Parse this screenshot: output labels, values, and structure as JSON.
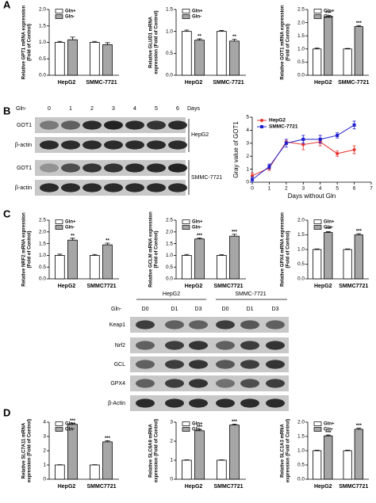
{
  "panel_labels": [
    "A",
    "B",
    "C",
    "D"
  ],
  "blot_b": {
    "treatment": "Gln-",
    "lanes": [
      "0",
      "1",
      "2",
      "3",
      "4",
      "5",
      "6"
    ],
    "unit": "Days",
    "rows": [
      "GOT1",
      "β-actin",
      "GOT1",
      "β-actin"
    ],
    "groups": [
      "HepG2",
      "SMMC-7721"
    ]
  },
  "blot_c": {
    "treatment": "Gln-",
    "groups": [
      "HepG2",
      "SMMC-7721"
    ],
    "lanes": [
      "D0",
      "D1",
      "D3",
      "D0",
      "D1",
      "D3"
    ],
    "rows": [
      "Keap1",
      "Nrf2",
      "GCL",
      "GPX4",
      "β-Actin"
    ]
  },
  "chart_data": [
    {
      "type": "bar",
      "ylabel": [
        "Relative GPT1 mRNA expression",
        "(Fold of Control)"
      ],
      "categories": [
        "HepG2",
        "SMMC-7721"
      ],
      "series": [
        {
          "name": "Gln+",
          "color": "#ffffff",
          "values": [
            1.0,
            1.0
          ],
          "errors": [
            0.03,
            0.03
          ]
        },
        {
          "name": "Gln-",
          "color": "#a6a6a6",
          "values": [
            1.08,
            0.93
          ],
          "errors": [
            0.08,
            0.06
          ]
        }
      ],
      "ylim": [
        0,
        2
      ],
      "yticks": [
        {
          "value": 0,
          "label": "0.0"
        },
        {
          "value": 0.5,
          "label": "0.5"
        },
        {
          "value": 1,
          "label": "1.0"
        },
        {
          "value": 1.5,
          "label": "1.5"
        },
        {
          "value": 2,
          "label": "2.0"
        }
      ]
    },
    {
      "type": "bar",
      "ylabel": [
        "Relative GLUD1 mRNA",
        "expression (Fold of Control)"
      ],
      "categories": [
        "HepG2",
        "SMMC-7721"
      ],
      "series": [
        {
          "name": "Gln+",
          "color": "#ffffff",
          "values": [
            1.0,
            1.0
          ],
          "errors": [
            0.03,
            0.02
          ]
        },
        {
          "name": "Gln-",
          "color": "#a6a6a6",
          "values": [
            0.8,
            0.78
          ],
          "errors": [
            0.03,
            0.04
          ],
          "significance": [
            "**",
            "**"
          ]
        }
      ],
      "ylim": [
        0,
        1.5
      ],
      "yticks": [
        {
          "value": 0,
          "label": "0.0"
        },
        {
          "value": 0.5,
          "label": "0.5"
        },
        {
          "value": 1,
          "label": "1.0"
        },
        {
          "value": 1.5,
          "label": "1.5"
        }
      ]
    },
    {
      "type": "bar",
      "ylabel": [
        "Relative GOT1 mRNA expression",
        "(Fold of Control)"
      ],
      "categories": [
        "HepG2",
        "SMMC-7721"
      ],
      "series": [
        {
          "name": "Gln+",
          "color": "#ffffff",
          "values": [
            1.0,
            1.0
          ],
          "errors": [
            0.03,
            0.02
          ]
        },
        {
          "name": "Gln-",
          "color": "#a6a6a6",
          "values": [
            2.22,
            1.85
          ],
          "errors": [
            0.04,
            0.04
          ],
          "significance": [
            "***",
            "***"
          ]
        }
      ],
      "ylim": [
        0,
        2.5
      ],
      "yticks": [
        {
          "value": 0,
          "label": "0.0"
        },
        {
          "value": 0.5,
          "label": "0.5"
        },
        {
          "value": 1,
          "label": "1.0"
        },
        {
          "value": 1.5,
          "label": "1.5"
        },
        {
          "value": 2,
          "label": "2.0"
        },
        {
          "value": 2.5,
          "label": "2.5"
        }
      ]
    },
    {
      "type": "line",
      "xlabel": "Days without Gln",
      "ylabel": "Gray value of GOT1",
      "x": [
        0,
        1,
        2,
        3,
        4,
        5,
        6
      ],
      "series": [
        {
          "name": "HepG2",
          "color": "#e8322e",
          "marker": "circle",
          "values": [
            0.5,
            1.1,
            3.1,
            2.9,
            3.1,
            2.2,
            2.5
          ],
          "errors": [
            0.2,
            0.2,
            0.2,
            0.4,
            0.3,
            0.2,
            0.3
          ]
        },
        {
          "name": "SMMC-7721",
          "color": "#1f1fcf",
          "marker": "square",
          "values": [
            0.2,
            1.2,
            3.0,
            3.3,
            3.3,
            3.6,
            4.4
          ],
          "errors": [
            0.2,
            0.2,
            0.3,
            0.3,
            0.3,
            0.2,
            0.3
          ]
        }
      ],
      "xlim": [
        0,
        7
      ],
      "xticks": [
        0,
        1,
        2,
        3,
        4,
        5,
        6,
        7
      ],
      "ylim": [
        0,
        5
      ],
      "yticks": [
        0,
        1,
        2,
        3,
        4,
        5
      ],
      "legend": "upper-left"
    },
    {
      "type": "bar",
      "ylabel": [
        "Relative NRF2 mRNA expression",
        "(Fold of Control)"
      ],
      "categories": [
        "HepG2",
        "SMMC7721"
      ],
      "series": [
        {
          "name": "Gln+",
          "color": "#ffffff",
          "values": [
            1.0,
            1.0
          ],
          "errors": [
            0.05,
            0.04
          ]
        },
        {
          "name": "Gln-",
          "color": "#a6a6a6",
          "values": [
            1.65,
            1.45
          ],
          "errors": [
            0.08,
            0.07
          ],
          "significance": [
            "**",
            "**"
          ]
        }
      ],
      "ylim": [
        0,
        2.5
      ],
      "yticks": [
        {
          "value": 0,
          "label": "0.0"
        },
        {
          "value": 0.5,
          "label": "0.5"
        },
        {
          "value": 1,
          "label": "1.0"
        },
        {
          "value": 1.5,
          "label": "1.5"
        },
        {
          "value": 2,
          "label": "2.0"
        },
        {
          "value": 2.5,
          "label": "2.5"
        }
      ]
    },
    {
      "type": "bar",
      "ylabel": [
        "Relative GCLM mRNA expression",
        "(Fold of Control)"
      ],
      "categories": [
        "HepG2",
        "SMMC7721"
      ],
      "series": [
        {
          "name": "Gln+",
          "color": "#ffffff",
          "values": [
            1.0,
            1.0
          ],
          "errors": [
            0.04,
            0.03
          ]
        },
        {
          "name": "Gln-",
          "color": "#a6a6a6",
          "values": [
            1.7,
            1.82
          ],
          "errors": [
            0.04,
            0.08
          ],
          "significance": [
            "***",
            "***"
          ]
        }
      ],
      "ylim": [
        0,
        2.5
      ],
      "yticks": [
        {
          "value": 0,
          "label": "0.0"
        },
        {
          "value": 0.5,
          "label": "0.5"
        },
        {
          "value": 1,
          "label": "1.0"
        },
        {
          "value": 1.5,
          "label": "1.5"
        },
        {
          "value": 2,
          "label": "2.0"
        },
        {
          "value": 2.5,
          "label": "2.5"
        }
      ]
    },
    {
      "type": "bar",
      "ylabel": [
        "Relative GPX4 mRNA expression",
        "(Fold of Control)"
      ],
      "categories": [
        "HepG2",
        "SMMC7721"
      ],
      "series": [
        {
          "name": "Gln+",
          "color": "#ffffff",
          "values": [
            1.0,
            1.0
          ],
          "errors": [
            0.02,
            0.02
          ]
        },
        {
          "name": "Gln-",
          "color": "#a6a6a6",
          "values": [
            1.58,
            1.5
          ],
          "errors": [
            0.03,
            0.04
          ],
          "significance": [
            "***",
            "***"
          ]
        }
      ],
      "ylim": [
        0,
        2
      ],
      "yticks": [
        {
          "value": 0,
          "label": "0.0"
        },
        {
          "value": 0.5,
          "label": "0.5"
        },
        {
          "value": 1,
          "label": "1.0"
        },
        {
          "value": 1.5,
          "label": "1.5"
        },
        {
          "value": 2,
          "label": "2.0"
        }
      ]
    },
    {
      "type": "bar",
      "ylabel": [
        "Relative SLC7A11 mRNA",
        "expression (Fold of Control)"
      ],
      "categories": [
        "HepG2",
        "SMMC7721"
      ],
      "series": [
        {
          "name": "Gln+",
          "color": "#ffffff",
          "values": [
            1.0,
            1.0
          ],
          "errors": [
            0.02,
            0.02
          ]
        },
        {
          "name": "Gln-",
          "color": "#a6a6a6",
          "values": [
            3.85,
            2.62
          ],
          "errors": [
            0.08,
            0.07
          ],
          "significance": [
            "***",
            "***"
          ]
        }
      ],
      "ylim": [
        0,
        4
      ],
      "yticks": [
        0,
        1,
        2,
        3,
        4
      ]
    },
    {
      "type": "bar",
      "ylabel": [
        "Relative SLC6A9 mRNA",
        "expression (Fold of Control)"
      ],
      "categories": [
        "HepG2",
        "SMMC7721"
      ],
      "series": [
        {
          "name": "Gln+",
          "color": "#ffffff",
          "values": [
            1.0,
            1.0
          ],
          "errors": [
            0.02,
            0.02
          ]
        },
        {
          "name": "Gln-",
          "color": "#a6a6a6",
          "values": [
            2.55,
            2.85
          ],
          "errors": [
            0.05,
            0.05
          ],
          "significance": [
            "***",
            "***"
          ]
        }
      ],
      "ylim": [
        0,
        3
      ],
      "yticks": [
        0,
        1,
        2,
        3
      ]
    },
    {
      "type": "bar",
      "ylabel": [
        "Relative SLC1A3 mRNA",
        "expression (Fold of Control)"
      ],
      "categories": [
        "HepG2",
        "SMMC7721"
      ],
      "series": [
        {
          "name": "Gln+",
          "color": "#ffffff",
          "values": [
            1.0,
            1.0
          ],
          "errors": [
            0.02,
            0.02
          ]
        },
        {
          "name": "Gln-",
          "color": "#a6a6a6",
          "values": [
            1.52,
            1.75
          ],
          "errors": [
            0.03,
            0.04
          ],
          "significance": [
            "***",
            "***"
          ]
        }
      ],
      "ylim": [
        0,
        2
      ],
      "yticks": [
        {
          "value": 0,
          "label": "0.0"
        },
        {
          "value": 0.5,
          "label": "0.5"
        },
        {
          "value": 1,
          "label": "1.0"
        },
        {
          "value": 1.5,
          "label": "1.5"
        },
        {
          "value": 2,
          "label": "2.0"
        }
      ]
    }
  ]
}
